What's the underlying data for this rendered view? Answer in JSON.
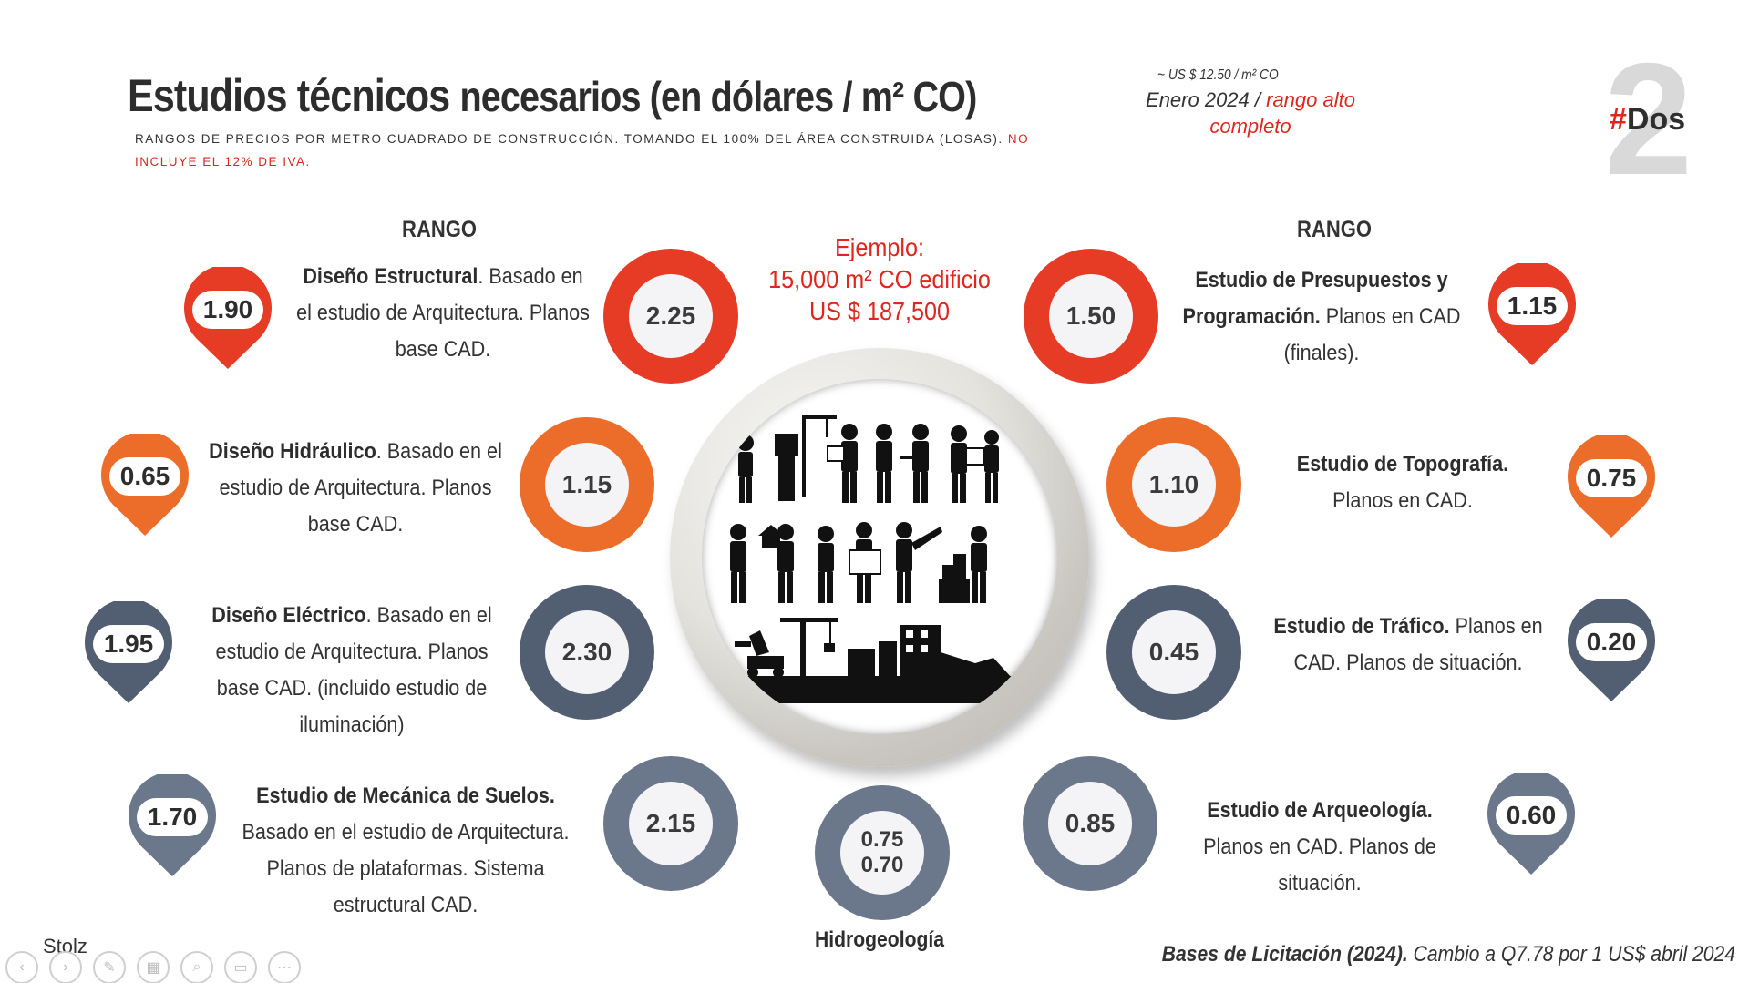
{
  "header": {
    "title_part1": "Estudios técnicos",
    "title_part2": "necesarios (en dólares / m² CO)",
    "subtitle_main": "Rangos de precios por metro cuadrado de construcción. Tomando el 100% del área construida (losas).",
    "subtitle_red": " No incluye el 12% de IVA.",
    "price_note": "~  US $ 12.50 / m² CO",
    "date_text": "Enero 2024 / ",
    "date_red": "rango alto completo",
    "brand_number": "2",
    "brand_hash": "#",
    "brand_word": "Dos"
  },
  "columns": {
    "left_header": "RANGO",
    "right_header": "RANGO"
  },
  "example": {
    "line1": "Ejemplo:",
    "line2": "15,000 m² CO edificio",
    "line3": "US $ 187,500"
  },
  "left_studies": [
    {
      "bold": "Diseño Estructural",
      "rest": ". Basado en el estudio de Arquitectura. Planos base CAD.",
      "low": "1.90",
      "high": "2.25",
      "color": "#e63b25"
    },
    {
      "bold": "Diseño Hidráulico",
      "rest": ". Basado en el estudio de Arquitectura. Planos base CAD.",
      "low": "0.65",
      "high": "1.15",
      "color": "#ec6c2a"
    },
    {
      "bold": "Diseño Eléctrico",
      "rest": ". Basado en el estudio de Arquitectura. Planos base CAD. (incluido estudio de iluminación)",
      "low": "1.95",
      "high": "2.30",
      "color": "#525f73"
    },
    {
      "bold": "Estudio de Mecánica de Suelos.",
      "rest": " Basado en el estudio de Arquitectura. Planos de plataformas. Sistema estructural CAD.",
      "low": "1.70",
      "high": "2.15",
      "color": "#6b778b"
    }
  ],
  "right_studies": [
    {
      "bold": "Estudio de Presupuestos y Programación.",
      "rest": " Planos en CAD (finales).",
      "low": "1.15",
      "high": "1.50",
      "color": "#e63b25"
    },
    {
      "bold": "Estudio de Topografía.",
      "rest": " Planos en CAD.",
      "low": "0.75",
      "high": "1.10",
      "color": "#ec6c2a"
    },
    {
      "bold": "Estudio de Tráfico.",
      "rest": " Planos en CAD. Planos de situación.",
      "low": "0.20",
      "high": "0.45",
      "color": "#525f73"
    },
    {
      "bold": "Estudio de Arqueología.",
      "rest": " Planos en CAD. Planos de situación.",
      "low": "0.60",
      "high": "0.85",
      "color": "#6b778b"
    }
  ],
  "hydro": {
    "high": "0.75",
    "low": "0.70",
    "label": "Hidrogeología",
    "color": "#6b778b"
  },
  "footer": {
    "source_bold": "Bases de Licitación (2024).",
    "source_rest": " Cambio a Q7.78 por 1 US$ abril 2024",
    "author": "Stolz"
  },
  "controls": [
    {
      "name": "prev-slide-button",
      "glyph": "‹"
    },
    {
      "name": "next-slide-button",
      "glyph": "›"
    },
    {
      "name": "pen-tool-button",
      "glyph": "✎"
    },
    {
      "name": "slides-grid-button",
      "glyph": "▦"
    },
    {
      "name": "zoom-button",
      "glyph": "⌕"
    },
    {
      "name": "subtitles-button",
      "glyph": "▭"
    },
    {
      "name": "more-options-button",
      "glyph": "⋯"
    }
  ]
}
